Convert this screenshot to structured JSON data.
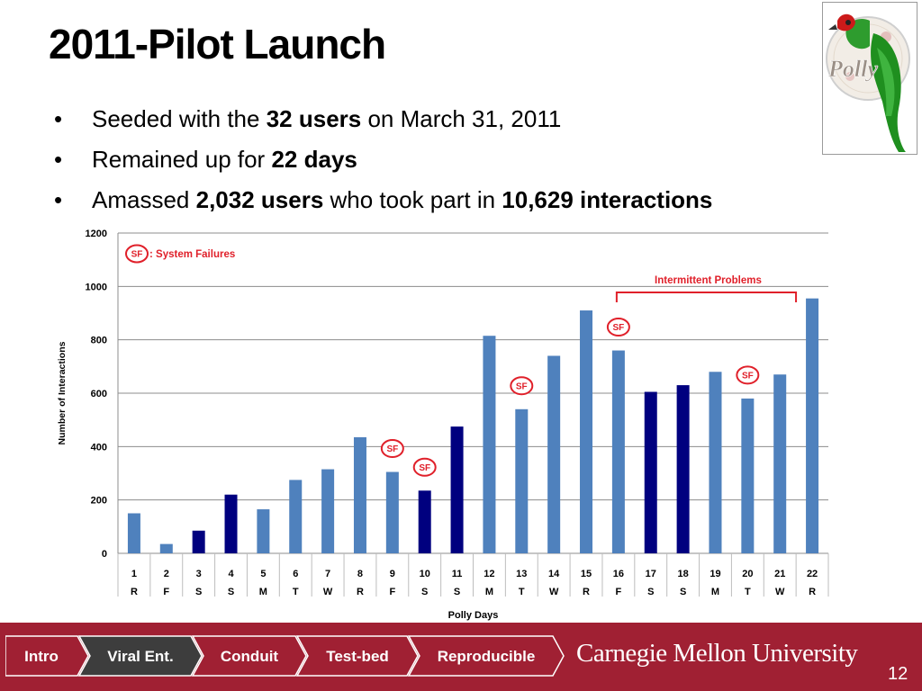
{
  "slide": {
    "title": "2011-Pilot Launch",
    "bullets": [
      {
        "pre": "Seeded with the ",
        "b1": "32 users",
        "mid": " on March 31, 2011",
        "b2": "",
        "post": ""
      },
      {
        "pre": "Remained up for ",
        "b1": "22 days",
        "mid": "",
        "b2": "",
        "post": ""
      },
      {
        "pre": "Amassed ",
        "b1": "2,032 users",
        "mid": " who took part in ",
        "b2": "10,629 interactions",
        "post": ""
      }
    ],
    "bullet_char": "•",
    "logo_text": "Polly",
    "page_number": "12"
  },
  "footer": {
    "breadcrumbs": [
      "Intro",
      "Viral Ent.",
      "Conduit",
      "Test-bed",
      "Reproducible"
    ],
    "active_index": 1,
    "university": "Carnegie Mellon University"
  },
  "colors": {
    "footer_bg": "#a02033",
    "bar_light": "#4f81bd",
    "bar_dark": "#00007f",
    "annotation_red": "#e0202a",
    "crumb_active": "#3d3d3d"
  },
  "chart_data": {
    "type": "bar",
    "xlabel": "Polly Days",
    "ylabel": "Number of Interactions",
    "ylim": [
      0,
      1200
    ],
    "yticks": [
      0,
      200,
      400,
      600,
      800,
      1000,
      1200
    ],
    "grid": true,
    "categories": [
      "1",
      "2",
      "3",
      "4",
      "5",
      "6",
      "7",
      "8",
      "9",
      "10",
      "11",
      "12",
      "13",
      "14",
      "15",
      "16",
      "17",
      "18",
      "19",
      "20",
      "21",
      "22"
    ],
    "weekdays": [
      "R",
      "F",
      "S",
      "S",
      "M",
      "T",
      "W",
      "R",
      "F",
      "S",
      "S",
      "M",
      "T",
      "W",
      "R",
      "F",
      "S",
      "S",
      "M",
      "T",
      "W",
      "R"
    ],
    "values": [
      150,
      35,
      85,
      220,
      165,
      275,
      315,
      435,
      305,
      235,
      475,
      815,
      540,
      740,
      910,
      760,
      605,
      630,
      680,
      580,
      670,
      955
    ],
    "weekend": [
      false,
      false,
      true,
      true,
      false,
      false,
      false,
      false,
      false,
      true,
      true,
      false,
      false,
      false,
      false,
      false,
      true,
      true,
      false,
      false,
      false,
      false
    ],
    "system_failure_days": [
      "9",
      "10",
      "13",
      "16",
      "20"
    ],
    "legend_text": ": System Failures",
    "sf_label": "SF",
    "annotation": {
      "text": "Intermittent Problems",
      "from": "16",
      "to": "22"
    }
  }
}
